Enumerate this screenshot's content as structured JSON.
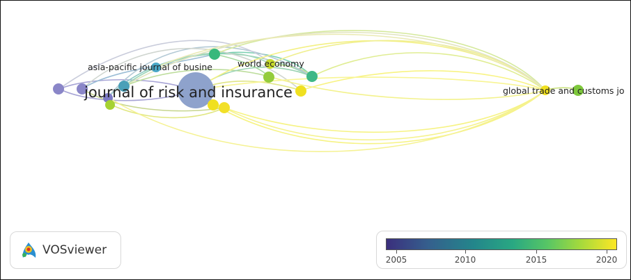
{
  "app": {
    "name": "VOSviewer"
  },
  "icons": {
    "logo": "vosviewer-logo-icon"
  },
  "network": {
    "labels": {
      "journal_of_risk": "journal of risk and insurance",
      "asia_pacific": "asia-pacific journal of busine",
      "world_economy": "world economy",
      "global_trade": "global trade and customs jo"
    }
  },
  "legend": {
    "ticks": [
      "2005",
      "2010",
      "2015",
      "2020"
    ],
    "colors": [
      "#3b2f7d",
      "#355f8d",
      "#23868b",
      "#29a882",
      "#57c665",
      "#a3d93d",
      "#fde725"
    ]
  }
}
